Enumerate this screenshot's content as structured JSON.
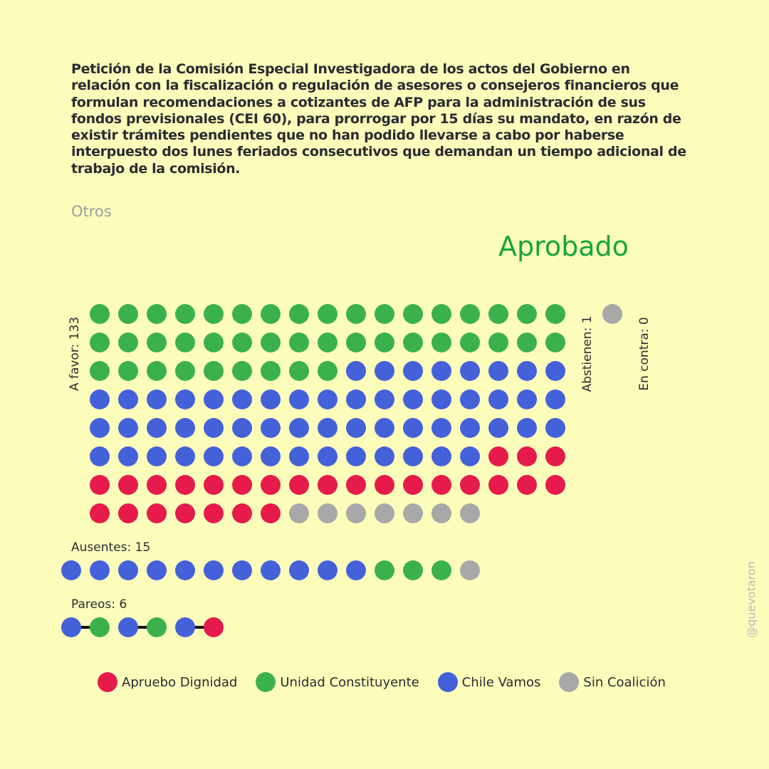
{
  "title": "Petición de la Comisión Especial Investigadora de los actos del Gobierno en relación con la fiscalización o regulación de asesores o consejeros financieros que formulan recomendaciones a cotizantes de AFP para la administración de sus fondos previsionales (CEI 60), para prorrogar por 15 días su mandato, en razón de existir trámites pendientes que no han podido llevarse a cabo por haberse interpuesto dos lunes feriados consecutivos que demandan un tiempo adicional de trabajo de la comisión.",
  "category": "Otros",
  "result": "Aprobado",
  "colors": {
    "apruebo_dignidad": "#e61a4b",
    "unidad_constituyente": "#3bb14e",
    "chile_vamos": "#4461d9",
    "sin_coalicion": "#a8a8a8",
    "result": "#16a638",
    "background": "#fdfdbb"
  },
  "chart_data": {
    "type": "dot-matrix",
    "groups": [
      {
        "label": "A favor: 133",
        "total": 133,
        "counts": {
          "unidad_constituyente": 43,
          "chile_vamos": 56,
          "apruebo_dignidad": 27,
          "sin_coalicion": 7
        }
      },
      {
        "label": "Abstienen: 1",
        "total": 1,
        "counts": {
          "sin_coalicion": 1
        }
      },
      {
        "label": "En contra: 0",
        "total": 0,
        "counts": {}
      },
      {
        "label": "Ausentes: 15",
        "total": 15,
        "sequence": [
          "chile_vamos",
          "chile_vamos",
          "chile_vamos",
          "chile_vamos",
          "chile_vamos",
          "chile_vamos",
          "chile_vamos",
          "chile_vamos",
          "chile_vamos",
          "chile_vamos",
          "chile_vamos",
          "unidad_constituyente",
          "unidad_constituyente",
          "unidad_constituyente",
          "sin_coalicion"
        ]
      },
      {
        "label": "Pareos: 6",
        "total": 6,
        "pairs": [
          [
            "chile_vamos",
            "unidad_constituyente"
          ],
          [
            "chile_vamos",
            "unidad_constituyente"
          ],
          [
            "chile_vamos",
            "apruebo_dignidad"
          ]
        ]
      }
    ],
    "legend": [
      {
        "key": "apruebo_dignidad",
        "label": "Apruebo Dignidad"
      },
      {
        "key": "unidad_constituyente",
        "label": "Unidad Constituyente"
      },
      {
        "key": "chile_vamos",
        "label": "Chile Vamos"
      },
      {
        "key": "sin_coalicion",
        "label": "Sin Coalición"
      }
    ]
  },
  "watermark": "@quevotaron"
}
